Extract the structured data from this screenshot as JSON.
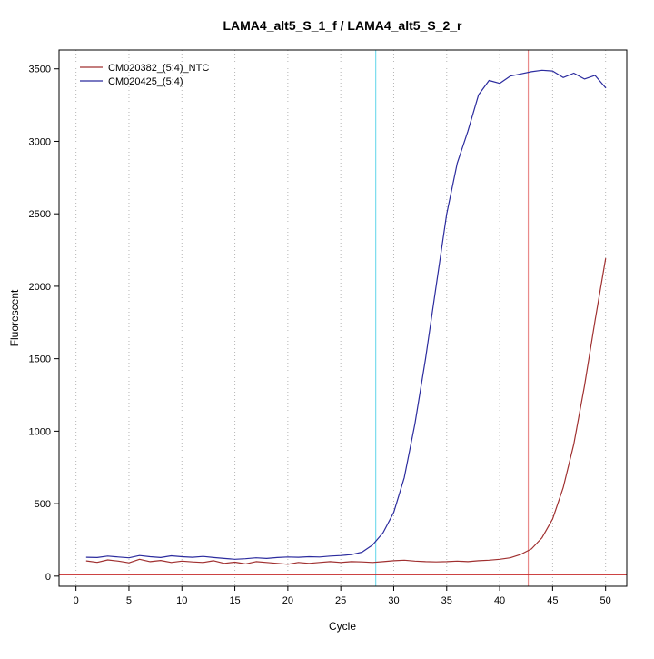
{
  "chart_data": {
    "type": "line",
    "title": "LAMA4_alt5_S_1_f / LAMA4_alt5_S_2_r",
    "xlabel": "Cycle",
    "ylabel": "Fluorescent",
    "xlim": [
      -1.6,
      52
    ],
    "ylim": [
      -70,
      3630
    ],
    "xticks": [
      0,
      5,
      10,
      15,
      20,
      25,
      30,
      35,
      40,
      45,
      50
    ],
    "yticks": [
      0,
      500,
      1000,
      1500,
      2000,
      2500,
      3000,
      3500
    ],
    "grid": "dotted vertical gridlines at x ticks",
    "legend_position": "top-left",
    "x": [
      1,
      2,
      3,
      4,
      5,
      6,
      7,
      8,
      9,
      10,
      11,
      12,
      13,
      14,
      15,
      16,
      17,
      18,
      19,
      20,
      21,
      22,
      23,
      24,
      25,
      26,
      27,
      28,
      29,
      30,
      31,
      32,
      33,
      34,
      35,
      36,
      37,
      38,
      39,
      40,
      41,
      42,
      43,
      44,
      45,
      46,
      47,
      48,
      49,
      50
    ],
    "series": [
      {
        "name": "CM020382_(5:4)_NTC",
        "color": "#A03030",
        "values": [
          105,
          95,
          112,
          104,
          92,
          116,
          100,
          108,
          94,
          104,
          98,
          94,
          106,
          88,
          96,
          84,
          100,
          94,
          88,
          82,
          94,
          88,
          94,
          100,
          94,
          100,
          98,
          94,
          100,
          106,
          110,
          104,
          100,
          98,
          100,
          104,
          100,
          106,
          110,
          116,
          126,
          150,
          188,
          265,
          395,
          610,
          910,
          1310,
          1760,
          2190
        ]
      },
      {
        "name": "CM020425_(5:4)",
        "color": "#2B2B9E",
        "values": [
          130,
          128,
          138,
          132,
          126,
          142,
          134,
          128,
          140,
          134,
          130,
          136,
          128,
          122,
          116,
          120,
          126,
          122,
          128,
          132,
          130,
          134,
          132,
          138,
          142,
          148,
          165,
          215,
          300,
          440,
          680,
          1050,
          1500,
          2000,
          2500,
          2850,
          3070,
          3320,
          3420,
          3400,
          3450,
          3465,
          3480,
          3490,
          3485,
          3440,
          3470,
          3430,
          3455,
          3370
        ]
      }
    ],
    "vlines": [
      {
        "x": 28.3,
        "color": "#7ADCEE",
        "label": "ct-threshold-blue"
      },
      {
        "x": 42.7,
        "color": "#E98A8A",
        "label": "ct-threshold-red"
      }
    ],
    "hlines": [
      {
        "y": 10,
        "color": "#C62828",
        "label": "baseline"
      }
    ],
    "gridline_color": "#B5B5B5",
    "axis_color": "#000000"
  }
}
